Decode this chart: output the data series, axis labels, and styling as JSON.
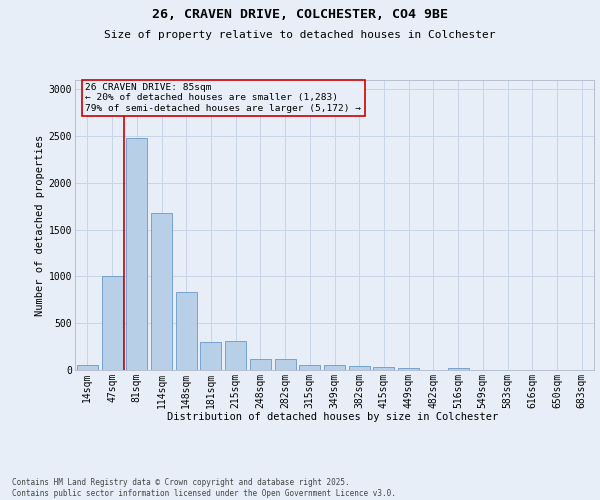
{
  "title_line1": "26, CRAVEN DRIVE, COLCHESTER, CO4 9BE",
  "title_line2": "Size of property relative to detached houses in Colchester",
  "xlabel": "Distribution of detached houses by size in Colchester",
  "ylabel": "Number of detached properties",
  "footnote": "Contains HM Land Registry data © Crown copyright and database right 2025.\nContains public sector information licensed under the Open Government Licence v3.0.",
  "categories": [
    "14sqm",
    "47sqm",
    "81sqm",
    "114sqm",
    "148sqm",
    "181sqm",
    "215sqm",
    "248sqm",
    "282sqm",
    "315sqm",
    "349sqm",
    "382sqm",
    "415sqm",
    "449sqm",
    "482sqm",
    "516sqm",
    "549sqm",
    "583sqm",
    "616sqm",
    "650sqm",
    "683sqm"
  ],
  "values": [
    50,
    1000,
    2480,
    1680,
    830,
    300,
    305,
    120,
    120,
    55,
    55,
    40,
    35,
    25,
    0,
    25,
    0,
    0,
    0,
    0,
    0
  ],
  "bar_color": "#b8cfe8",
  "bar_edge_color": "#6699cc",
  "grid_color": "#c8d4e8",
  "background_color": "#e8eef8",
  "annotation_box_color": "#cc0000",
  "annotation_text": "26 CRAVEN DRIVE: 85sqm\n← 20% of detached houses are smaller (1,283)\n79% of semi-detached houses are larger (5,172) →",
  "red_line_x": 1.5,
  "ylim": [
    0,
    3100
  ],
  "yticks": [
    0,
    500,
    1000,
    1500,
    2000,
    2500,
    3000
  ],
  "title1_fontsize": 9.5,
  "title2_fontsize": 8.0,
  "ylabel_fontsize": 7.5,
  "xlabel_fontsize": 7.5,
  "tick_fontsize": 7.0,
  "footnote_fontsize": 5.5
}
